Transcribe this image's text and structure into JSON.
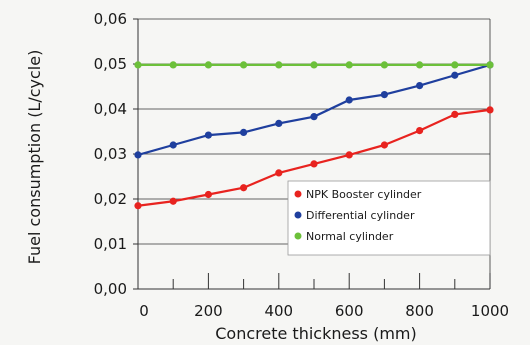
{
  "chart_data": {
    "type": "line",
    "xlabel": "Concrete thickness (mm)",
    "ylabel": "Fuel consumption (L/cycle)",
    "xlim": [
      0,
      1000
    ],
    "ylim": [
      0,
      0.06
    ],
    "x_ticks": [
      "0",
      "200",
      "400",
      "600",
      "800",
      "1000"
    ],
    "x_tick_values": [
      0,
      200,
      400,
      600,
      800,
      1000
    ],
    "y_ticks": [
      "0,00",
      "0,01",
      "0,02",
      "0,03",
      "0,04",
      "0,05",
      "0,06"
    ],
    "y_tick_values": [
      0,
      0.01,
      0.02,
      0.03,
      0.04,
      0.05,
      0.06
    ],
    "grid": "horizontal",
    "legend_position": "bottom-right",
    "x": [
      0,
      100,
      200,
      300,
      400,
      500,
      600,
      700,
      800,
      900,
      1000
    ],
    "series": [
      {
        "name": "NPK Booster cylinder",
        "color": "#e8231f",
        "values": [
          0.0185,
          0.0195,
          0.021,
          0.0225,
          0.0258,
          0.0278,
          0.0298,
          0.032,
          0.0352,
          0.0388,
          0.0398
        ]
      },
      {
        "name": "Differential cylinder",
        "color": "#1f3f9e",
        "values": [
          0.0298,
          0.032,
          0.0342,
          0.0348,
          0.0368,
          0.0383,
          0.042,
          0.0432,
          0.0452,
          0.0475,
          0.0498
        ]
      },
      {
        "name": "Normal cylinder",
        "color": "#6cc03a",
        "values": [
          0.0498,
          0.0498,
          0.0498,
          0.0498,
          0.0498,
          0.0498,
          0.0498,
          0.0498,
          0.0498,
          0.0498,
          0.0498
        ]
      }
    ]
  }
}
